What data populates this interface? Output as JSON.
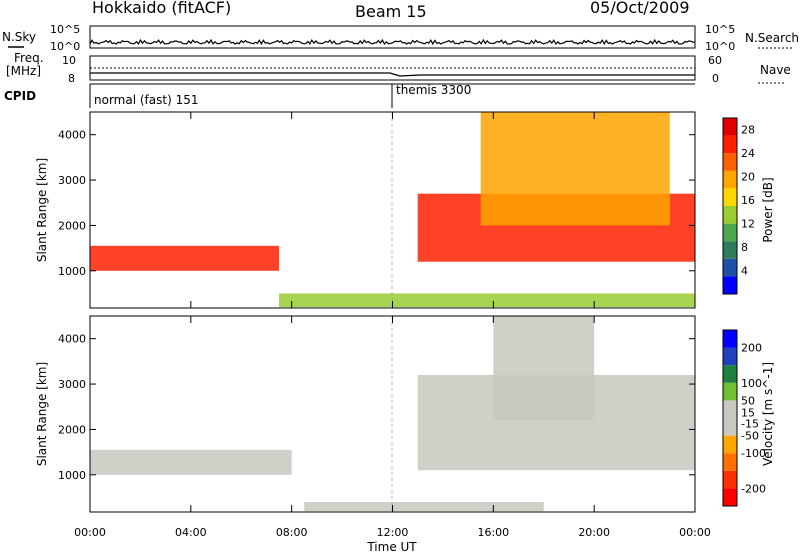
{
  "header": {
    "title": "Hokkaido (fitACF)",
    "beam": "Beam 15",
    "date": "05/Oct/2009"
  },
  "strip_labels": {
    "nsky": "N.Sky",
    "nsky_top": "10^5",
    "nsky_bottom": "10^0",
    "nsearch": "N.Search",
    "nsearch_top": "10^5",
    "nsearch_bottom": "10^0",
    "freq_line1": "Freq.",
    "freq_line2": "[MHz]",
    "freq_top": "10",
    "freq_bottom": "8",
    "nave": "Nave",
    "nave_top": "60",
    "nave_bottom": "0",
    "cpid": "CPID"
  },
  "cpid_segments": [
    {
      "label": "normal (fast) 151",
      "start_hour": 0,
      "end_hour": 12
    },
    {
      "label": "themis 3300",
      "start_hour": 12,
      "end_hour": 24
    }
  ],
  "colors": {
    "power": [
      "#0000ff",
      "#1f50a8",
      "#2e7d5a",
      "#4ca84c",
      "#9acd32",
      "#ffd700",
      "#ffa500",
      "#ff6000",
      "#ff2000",
      "#e00000"
    ],
    "velocity": [
      "#0000ff",
      "#2040c0",
      "#208040",
      "#70c030",
      "#c8c8c0",
      "#c8c8c0",
      "#ffa500",
      "#ff7000",
      "#ff3000",
      "#ff0000"
    ],
    "ground_scatter": "#c0c0b8"
  },
  "chart_data": [
    {
      "type": "heatmap",
      "name": "power-panel",
      "ylabel": "Slant Range [km]",
      "xlabel": "Time UT",
      "xlim": [
        0,
        24
      ],
      "ylim": [
        180,
        4500
      ],
      "x_ticks": [
        "00:00",
        "04:00",
        "08:00",
        "12:00",
        "16:00",
        "20:00",
        "00:00"
      ],
      "y_ticks": [
        1000,
        2000,
        3000,
        4000
      ],
      "colorbar": {
        "label": "Power [dB]",
        "range": [
          0,
          30
        ],
        "ticks": [
          4,
          8,
          12,
          16,
          20,
          24,
          28
        ]
      },
      "features": [
        {
          "desc": "strong band",
          "hours": [
            0,
            7.5
          ],
          "range_km": [
            1000,
            1550
          ],
          "value_db": 28
        },
        {
          "desc": "strong band",
          "hours": [
            13,
            24
          ],
          "range_km": [
            1200,
            2700
          ],
          "value_db": 28
        },
        {
          "desc": "descending arc",
          "hours": [
            15.5,
            23
          ],
          "range_km": [
            2000,
            4500
          ],
          "value_db": 20
        },
        {
          "desc": "near-range echoes",
          "hours": [
            7.5,
            24
          ],
          "range_km": [
            200,
            500
          ],
          "value_db": 14
        }
      ]
    },
    {
      "type": "heatmap",
      "name": "velocity-panel",
      "ylabel": "Slant Range [km]",
      "xlabel": "Time UT",
      "xlim": [
        0,
        24
      ],
      "ylim": [
        180,
        4500
      ],
      "x_ticks": [
        "00:00",
        "04:00",
        "08:00",
        "12:00",
        "16:00",
        "20:00",
        "00:00"
      ],
      "y_ticks": [
        1000,
        2000,
        3000,
        4000
      ],
      "colorbar": {
        "label": "Velocity [m s^-1]",
        "range": [
          -250,
          250
        ],
        "ticks": [
          200,
          100,
          50,
          15,
          -15,
          -50,
          -100,
          -200
        ]
      },
      "features": [
        {
          "desc": "ground scatter band",
          "hours": [
            0,
            8
          ],
          "range_km": [
            1000,
            1550
          ],
          "value_ms": 0
        },
        {
          "desc": "ground scatter band",
          "hours": [
            13,
            24
          ],
          "range_km": [
            1100,
            3200
          ],
          "value_ms": 0
        },
        {
          "desc": "positive velocity arc",
          "hours": [
            16,
            20
          ],
          "range_km": [
            2200,
            4500
          ],
          "value_ms": 50
        },
        {
          "desc": "near-range positive",
          "hours": [
            8.5,
            18
          ],
          "range_km": [
            200,
            400
          ],
          "value_ms": 50
        }
      ]
    }
  ]
}
